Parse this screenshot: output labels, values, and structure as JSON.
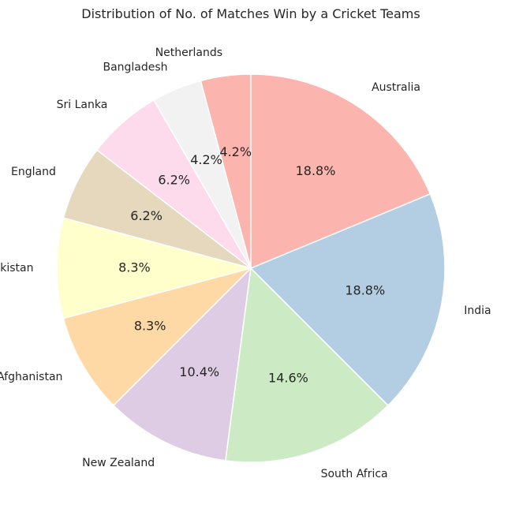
{
  "chart_data": {
    "type": "pie",
    "title": "Distribution of No. of Matches Win by a Cricket Teams",
    "start_angle_deg": 90,
    "direction": "counterclockwise",
    "label_format": "{pct}%",
    "slices": [
      {
        "label": "Netherlands",
        "value": 2,
        "pct": "4.2",
        "color": "#fbb4ae"
      },
      {
        "label": "Bangladesh",
        "value": 2,
        "pct": "4.2",
        "color": "#f2f2f2"
      },
      {
        "label": "Sri Lanka",
        "value": 3,
        "pct": "6.2",
        "color": "#fddaec"
      },
      {
        "label": "England",
        "value": 3,
        "pct": "6.2",
        "color": "#e5d8bd"
      },
      {
        "label": "Pakistan",
        "value": 4,
        "pct": "8.3",
        "color": "#ffffcc"
      },
      {
        "label": "Afghanistan",
        "value": 4,
        "pct": "8.3",
        "color": "#fed9a6"
      },
      {
        "label": "New Zealand",
        "value": 5,
        "pct": "10.4",
        "color": "#decbe4"
      },
      {
        "label": "South Africa",
        "value": 7,
        "pct": "14.6",
        "color": "#ccebc5"
      },
      {
        "label": "India",
        "value": 9,
        "pct": "18.8",
        "color": "#b3cde3"
      },
      {
        "label": "Australia",
        "value": 9,
        "pct": "18.8",
        "color": "#fbb4ae"
      }
    ]
  }
}
